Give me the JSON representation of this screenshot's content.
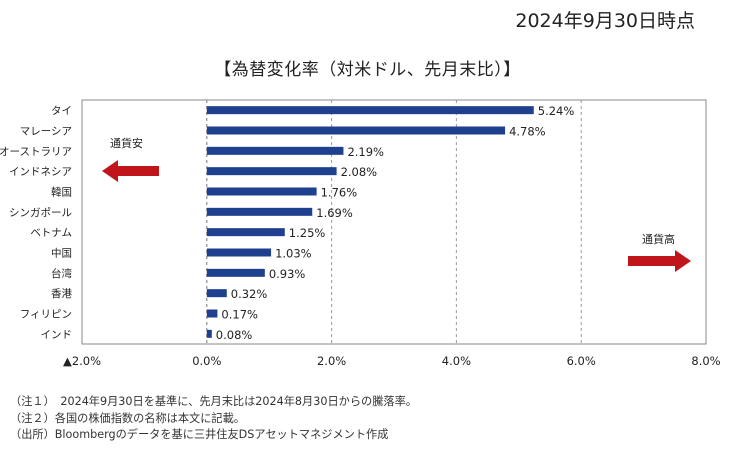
{
  "header": {
    "date": "2024年9月30日時点",
    "title": "【為替変化率（対米ドル、先月末比）】"
  },
  "chart_data": {
    "type": "bar",
    "orientation": "horizontal",
    "categories": [
      "タイ",
      "マレーシア",
      "オーストラリア",
      "インドネシア",
      "韓国",
      "シンガポール",
      "ベトナム",
      "中国",
      "台湾",
      "香港",
      "フィリピン",
      "インド"
    ],
    "values": [
      5.24,
      4.78,
      2.19,
      2.08,
      1.76,
      1.69,
      1.25,
      1.03,
      0.93,
      0.32,
      0.17,
      0.08
    ],
    "value_labels": [
      "5.24%",
      "4.78%",
      "2.19%",
      "2.08%",
      "1.76%",
      "1.69%",
      "1.25%",
      "1.03%",
      "0.93%",
      "0.32%",
      "0.17%",
      "0.08%"
    ],
    "xlim": [
      -2,
      8
    ],
    "xticks": [
      -2,
      0,
      2,
      4,
      6,
      8
    ],
    "xtick_labels": [
      "▲2.0%",
      "0.0%",
      "2.0%",
      "4.0%",
      "6.0%",
      "8.0%"
    ],
    "grid": "vertical dashed",
    "bar_color": "#1f3f8f",
    "arrow_color": "#c0161b",
    "annotations": {
      "left_arrow_label": "通貨安",
      "right_arrow_label": "通貨高"
    }
  },
  "notes": [
    "（注１）　2024年9月30日を基準に、先月末比は2024年8月30日からの騰落率。",
    "（注２）各国の株価指数の名称は本文に記載。",
    "（出所）Bloombergのデータを基に三井住友DSアセットマネジメント作成"
  ]
}
